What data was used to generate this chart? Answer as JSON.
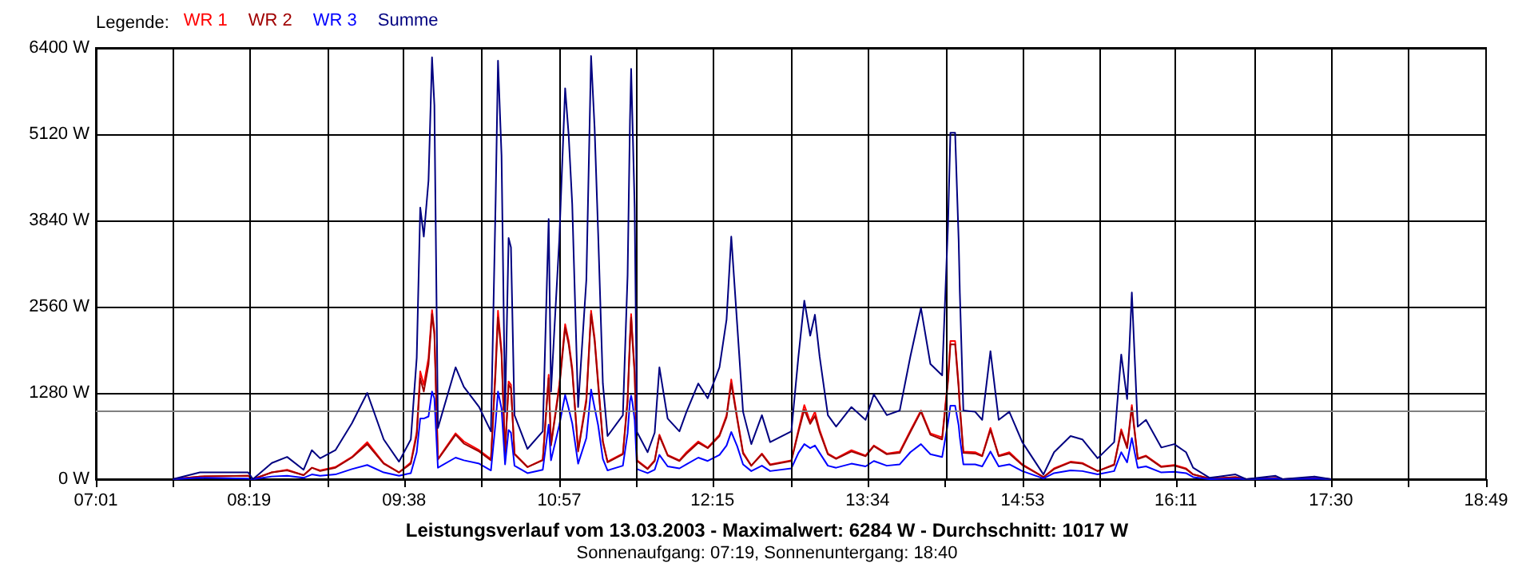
{
  "chart_data": {
    "type": "line",
    "title": "Leistungsverlauf vom 13.03.2003 - Maximalwert: 6284 W - Durchschnitt: 1017 W",
    "subtitle": "Sonnenaufgang: 07:19, Sonnenuntergang: 18:40",
    "legend_title": "Legende:",
    "legend": "top left",
    "grid": true,
    "marker": "none",
    "line_style": "solid",
    "xlim": [
      7.0167,
      18.8167
    ],
    "xticks": [
      {
        "value": 7.0167,
        "label": "07:01"
      },
      {
        "value": 7.6722,
        "label": null
      },
      {
        "value": 8.3167,
        "label": "08:19"
      },
      {
        "value": 8.9833,
        "label": null
      },
      {
        "value": 9.6333,
        "label": "09:38"
      },
      {
        "value": 10.2944,
        "label": null
      },
      {
        "value": 10.95,
        "label": "10:57"
      },
      {
        "value": 11.6056,
        "label": null
      },
      {
        "value": 12.25,
        "label": "12:15"
      },
      {
        "value": 12.9167,
        "label": null
      },
      {
        "value": 13.5667,
        "label": "13:34"
      },
      {
        "value": 14.2278,
        "label": null
      },
      {
        "value": 14.8833,
        "label": "14:53"
      },
      {
        "value": 15.5389,
        "label": null
      },
      {
        "value": 16.1833,
        "label": "16:11"
      },
      {
        "value": 16.85,
        "label": null
      },
      {
        "value": 17.5,
        "label": "17:30"
      },
      {
        "value": 18.1611,
        "label": null
      },
      {
        "value": 18.8167,
        "label": "18:49"
      }
    ],
    "ylim": [
      0,
      6400
    ],
    "yticks": [
      {
        "value": 0,
        "label": "0 W"
      },
      {
        "value": 1280,
        "label": "1280 W"
      },
      {
        "value": 2560,
        "label": "2560 W"
      },
      {
        "value": 3840,
        "label": "3840 W"
      },
      {
        "value": 5120,
        "label": "5120 W"
      },
      {
        "value": 6400,
        "label": "6400 W"
      }
    ],
    "ref_lines": [
      {
        "axis": "y",
        "value": 1017,
        "label": null,
        "color": "#808080"
      }
    ],
    "x": [
      7.67,
      7.9,
      8.31,
      8.35,
      8.51,
      8.64,
      8.78,
      8.85,
      8.92,
      9.05,
      9.19,
      9.32,
      9.46,
      9.59,
      9.69,
      9.74,
      9.77,
      9.8,
      9.84,
      9.87,
      9.89,
      9.92,
      10.07,
      10.14,
      10.27,
      10.37,
      10.41,
      10.43,
      10.46,
      10.49,
      10.52,
      10.54,
      10.57,
      10.68,
      10.81,
      10.86,
      10.88,
      10.95,
      11.0,
      11.03,
      11.06,
      11.11,
      11.18,
      11.22,
      11.25,
      11.28,
      11.32,
      11.36,
      11.49,
      11.53,
      11.55,
      11.56,
      11.57,
      11.59,
      11.61,
      11.7,
      11.76,
      11.8,
      11.87,
      11.97,
      12.03,
      12.13,
      12.21,
      12.31,
      12.37,
      12.41,
      12.46,
      12.51,
      12.58,
      12.67,
      12.74,
      12.92,
      12.98,
      13.03,
      13.08,
      13.12,
      13.16,
      13.23,
      13.3,
      13.43,
      13.55,
      13.62,
      13.73,
      13.84,
      13.93,
      14.02,
      14.1,
      14.2,
      14.25,
      14.27,
      14.31,
      14.34,
      14.35,
      14.38,
      14.48,
      14.54,
      14.61,
      14.68,
      14.77,
      14.88,
      15.06,
      15.15,
      15.29,
      15.39,
      15.52,
      15.66,
      15.72,
      15.77,
      15.81,
      15.86,
      15.93,
      16.06,
      16.17,
      16.27,
      16.33,
      16.47,
      16.69,
      16.78,
      17.03,
      17.09,
      17.36,
      17.5
    ],
    "series": [
      {
        "name": "WR 1",
        "color": "#ff0000",
        "values": [
          0,
          40,
          50,
          0,
          100,
          140,
          60,
          170,
          130,
          180,
          330,
          550,
          240,
          100,
          250,
          700,
          1600,
          1400,
          1800,
          2510,
          2200,
          300,
          680,
          560,
          430,
          300,
          1700,
          2500,
          1900,
          400,
          1450,
          1400,
          380,
          180,
          290,
          1550,
          520,
          1400,
          2300,
          2050,
          1650,
          430,
          1200,
          2500,
          2100,
          1450,
          570,
          260,
          380,
          1200,
          2100,
          2450,
          2150,
          1600,
          280,
          160,
          280,
          660,
          360,
          280,
          400,
          560,
          470,
          660,
          950,
          1480,
          920,
          400,
          200,
          380,
          220,
          280,
          730,
          1100,
          850,
          1000,
          730,
          380,
          310,
          430,
          350,
          500,
          380,
          410,
          720,
          1020,
          680,
          620,
          1500,
          2050,
          2050,
          1400,
          1100,
          410,
          400,
          350,
          760,
          350,
          400,
          220,
          30,
          160,
          260,
          240,
          120,
          220,
          740,
          480,
          1100,
          310,
          350,
          190,
          210,
          160,
          70,
          10,
          30,
          0,
          null,
          null,
          null,
          null
        ]
      },
      {
        "name": "WR 2",
        "color": "#a00000",
        "values": [
          0,
          40,
          50,
          0,
          100,
          130,
          60,
          170,
          120,
          170,
          320,
          520,
          230,
          100,
          230,
          650,
          1500,
          1300,
          1700,
          2450,
          2150,
          290,
          660,
          530,
          410,
          280,
          1600,
          2400,
          1850,
          380,
          1400,
          1350,
          370,
          180,
          280,
          1500,
          500,
          1350,
          2250,
          2000,
          1600,
          410,
          1150,
          2450,
          2050,
          1400,
          550,
          250,
          370,
          1150,
          2050,
          2400,
          2100,
          1550,
          270,
          150,
          270,
          640,
          350,
          270,
          380,
          540,
          460,
          640,
          920,
          1420,
          890,
          380,
          200,
          370,
          210,
          270,
          700,
          1030,
          820,
          940,
          700,
          370,
          300,
          410,
          340,
          490,
          370,
          390,
          700,
          1000,
          660,
          590,
          1450,
          2000,
          2000,
          1350,
          1050,
          390,
          380,
          340,
          730,
          340,
          380,
          210,
          30,
          150,
          250,
          230,
          120,
          210,
          710,
          460,
          1060,
          300,
          340,
          180,
          200,
          150,
          70,
          10,
          30,
          0,
          20,
          0,
          20,
          0
        ]
      },
      {
        "name": "WR 3",
        "color": "#0000ff",
        "values": [
          0,
          20,
          10,
          0,
          40,
          50,
          20,
          70,
          50,
          70,
          150,
          210,
          100,
          50,
          90,
          400,
          900,
          900,
          930,
          1300,
          1200,
          170,
          320,
          280,
          230,
          130,
          850,
          1300,
          1050,
          220,
          730,
          690,
          200,
          90,
          140,
          810,
          280,
          800,
          1250,
          1050,
          830,
          230,
          610,
          1330,
          1060,
          800,
          300,
          130,
          200,
          680,
          1160,
          1240,
          1150,
          880,
          150,
          90,
          140,
          360,
          190,
          160,
          220,
          320,
          270,
          360,
          500,
          700,
          490,
          220,
          120,
          200,
          120,
          160,
          390,
          520,
          460,
          500,
          390,
          200,
          170,
          230,
          190,
          270,
          200,
          220,
          400,
          520,
          370,
          330,
          840,
          1090,
          1090,
          800,
          620,
          220,
          220,
          190,
          410,
          190,
          220,
          120,
          10,
          90,
          130,
          120,
          70,
          120,
          400,
          250,
          610,
          170,
          190,
          100,
          110,
          90,
          30,
          0,
          10,
          0,
          10,
          0,
          10,
          0
        ]
      },
      {
        "name": "Summe",
        "color": "#000080",
        "values": [
          0,
          100,
          100,
          0,
          240,
          330,
          140,
          430,
          310,
          430,
          830,
          1280,
          590,
          260,
          590,
          1800,
          4030,
          3600,
          4430,
          6260,
          5550,
          760,
          1660,
          1370,
          1070,
          710,
          4150,
          6210,
          4800,
          1000,
          3580,
          3440,
          950,
          450,
          710,
          3860,
          1300,
          3550,
          5800,
          5100,
          4080,
          1070,
          2960,
          6280,
          5210,
          3650,
          1420,
          640,
          950,
          3030,
          5310,
          6090,
          5400,
          4030,
          700,
          400,
          690,
          1660,
          900,
          710,
          1000,
          1420,
          1200,
          1660,
          2370,
          3600,
          2300,
          1000,
          520,
          950,
          550,
          710,
          1820,
          2650,
          2130,
          2440,
          1820,
          950,
          780,
          1070,
          880,
          1260,
          950,
          1020,
          1820,
          2540,
          1710,
          1540,
          3790,
          5140,
          5140,
          3550,
          2770,
          1020,
          1000,
          880,
          1900,
          880,
          1000,
          550,
          70,
          400,
          640,
          590,
          310,
          550,
          1850,
          1190,
          2770,
          780,
          880,
          470,
          520,
          400,
          170,
          20,
          70,
          0,
          50,
          0,
          40,
          0
        ]
      }
    ]
  }
}
